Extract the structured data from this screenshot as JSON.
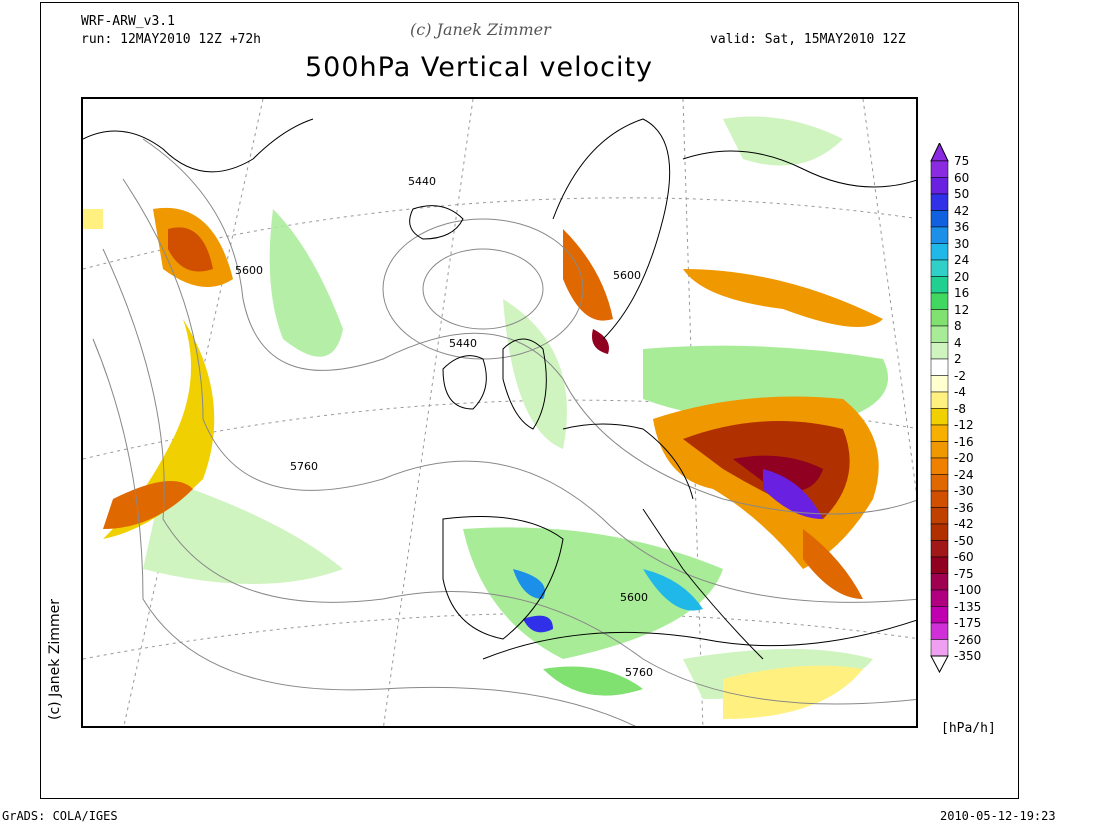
{
  "header": {
    "model": "WRF-ARW_v3.1",
    "run": "run: 12MAY2010 12Z +72h",
    "copyright": "(c) Janek Zimmer",
    "valid": "valid: Sat, 15MAY2010 12Z",
    "title": "500hPa Vertical velocity"
  },
  "side_copyright": "(c) Janek Zimmer",
  "contour_labels": [
    "5440",
    "5600",
    "5440",
    "5760",
    "5600",
    "5600",
    "5760"
  ],
  "colorbar": {
    "labels": [
      "75",
      "60",
      "50",
      "42",
      "36",
      "30",
      "24",
      "20",
      "16",
      "12",
      "8",
      "4",
      "2",
      "-2",
      "-4",
      "-8",
      "-12",
      "-16",
      "-20",
      "-24",
      "-30",
      "-36",
      "-42",
      "-50",
      "-60",
      "-75",
      "-100",
      "-135",
      "-175",
      "-260",
      "-350"
    ],
    "colors": [
      "#8a2be2",
      "#6a20e0",
      "#3030e8",
      "#1060e0",
      "#1c90e8",
      "#20b8e8",
      "#30d0c8",
      "#20d090",
      "#40d860",
      "#80e070",
      "#a8ec98",
      "#d0f4c0",
      "#ffffff",
      "#ffffd0",
      "#fff080",
      "#f0d000",
      "#f8b000",
      "#f09800",
      "#f08000",
      "#e06800",
      "#d05000",
      "#c04000",
      "#b03000",
      "#a01818",
      "#900020",
      "#a00050",
      "#b00080",
      "#c000b0",
      "#d030d8",
      "#f0a0f0"
    ],
    "unit": "[hPa/h]"
  },
  "footer": {
    "left": "GrADS: COLA/IGES",
    "right": "2010-05-12-19:23"
  }
}
